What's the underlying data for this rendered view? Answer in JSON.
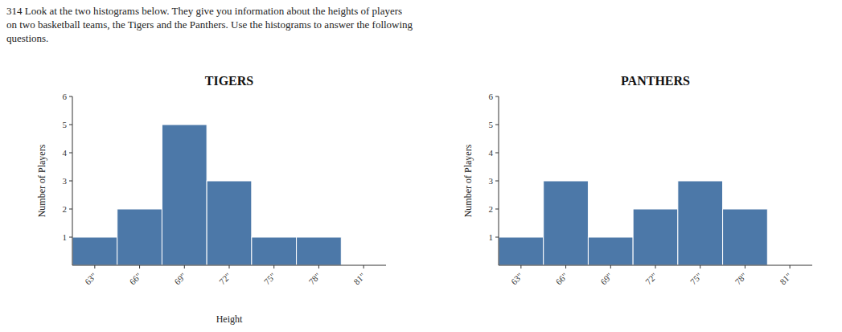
{
  "chart_data": [
    {
      "type": "bar",
      "title": "TIGERS",
      "annotations": [
        "314 Look at the two histograms below. They give you information about the heights of players\non two basketball teams, the Tigers and the Panthers. Use the histograms to answer the following\nquestions."
      ],
      "categories": [
        "63\"",
        "66\"",
        "69\"",
        "72\"",
        "75\"",
        "78\"",
        "81\""
      ],
      "values": [
        1,
        2,
        5,
        3,
        1,
        1,
        0
      ],
      "ylabel": "Number of Players",
      "xlabel": "Height",
      "ylim": [
        0,
        6
      ],
      "yticks": [
        1,
        2,
        3,
        4,
        5,
        6
      ]
    },
    {
      "type": "bar",
      "title": "PANTHERS",
      "categories": [
        "63\"",
        "66\"",
        "69\"",
        "72\"",
        "75\"",
        "78\"",
        "81\""
      ],
      "values": [
        1,
        3,
        1,
        2,
        3,
        2,
        0
      ],
      "ylabel": "Number of Players",
      "ylim": [
        0,
        6
      ],
      "yticks": [
        1,
        2,
        3,
        4,
        5,
        6
      ]
    }
  ]
}
